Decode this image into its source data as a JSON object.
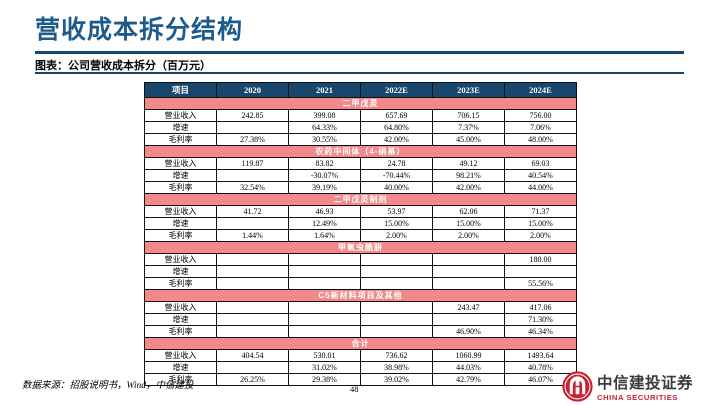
{
  "slide": {
    "title": "营收成本拆分结构",
    "subtitle": "图表：公司营收成本拆分（百万元）",
    "source_note": "数据来源：招股说明书，Wind，中信建投",
    "page_number": "48"
  },
  "logo": {
    "name_cn": "中信建投证券",
    "name_en": "CHINA SECURITIES"
  },
  "colors": {
    "title_blue": "#1E5B8D",
    "rule_navy": "#17466B",
    "table_header_bg": "#17476E",
    "section_row_pink": "#F4898C",
    "logo_red": "#C92130"
  },
  "table": {
    "columns": [
      "项目",
      "2020",
      "2021",
      "2022E",
      "2023E",
      "2024E"
    ],
    "sections": [
      {
        "name": "二甲戊灵",
        "rows": [
          {
            "label": "营业收入",
            "values": [
              "242.85",
              "399.08",
              "657.69",
              "706.15",
              "756.00"
            ]
          },
          {
            "label": "增速",
            "values": [
              "",
              "64.33%",
              "64.80%",
              "7.37%",
              "7.06%"
            ]
          },
          {
            "label": "毛利率",
            "values": [
              "27.38%",
              "30.55%",
              "42.00%",
              "45.00%",
              "48.00%"
            ]
          }
        ]
      },
      {
        "name": "农药中间体（4-硝基）",
        "rows": [
          {
            "label": "营业收入",
            "values": [
              "119.87",
              "83.82",
              "24.78",
              "49.12",
              "69.03"
            ]
          },
          {
            "label": "增速",
            "values": [
              "",
              "-30.07%",
              "-70.44%",
              "98.21%",
              "40.54%"
            ]
          },
          {
            "label": "毛利率",
            "values": [
              "32.54%",
              "39.19%",
              "40.00%",
              "42.00%",
              "44.00%"
            ]
          }
        ]
      },
      {
        "name": "二甲戊灵制剂",
        "rows": [
          {
            "label": "营业收入",
            "values": [
              "41.72",
              "46.93",
              "53.97",
              "62.06",
              "71.37"
            ]
          },
          {
            "label": "增速",
            "values": [
              "",
              "12.49%",
              "15.00%",
              "15.00%",
              "15.00%"
            ]
          },
          {
            "label": "毛利率",
            "values": [
              "1.44%",
              "1.64%",
              "2.00%",
              "2.00%",
              "2.00%"
            ]
          }
        ]
      },
      {
        "name": "甲氧虫酰肼",
        "rows": [
          {
            "label": "营业收入",
            "values": [
              "",
              "",
              "",
              "",
              "180.00"
            ]
          },
          {
            "label": "增速",
            "values": [
              "",
              "",
              "",
              "",
              ""
            ]
          },
          {
            "label": "毛利率",
            "values": [
              "",
              "",
              "",
              "",
              "55.56%"
            ]
          }
        ]
      },
      {
        "name": "C5新材料项目及其他",
        "rows": [
          {
            "label": "营业收入",
            "values": [
              "",
              "",
              "",
              "243.47",
              "417.06"
            ]
          },
          {
            "label": "增速",
            "values": [
              "",
              "",
              "",
              "",
              "71.30%"
            ]
          },
          {
            "label": "毛利率",
            "values": [
              "",
              "",
              "",
              "46.90%",
              "46.34%"
            ]
          }
        ]
      },
      {
        "name": "合计",
        "rows": [
          {
            "label": "营业收入",
            "values": [
              "404.54",
              "530.01",
              "736.62",
              "1060.99",
              "1493.64"
            ]
          },
          {
            "label": "增速",
            "values": [
              "",
              "31.02%",
              "38.98%",
              "44.03%",
              "40.78%"
            ]
          },
          {
            "label": "毛利率",
            "values": [
              "26.25%",
              "29.38%",
              "39.02%",
              "42.79%",
              "46.07%"
            ]
          }
        ]
      }
    ]
  }
}
